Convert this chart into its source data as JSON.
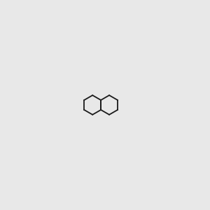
{
  "background_color": "#e8e8e8",
  "bond_color": "#1a1a1a",
  "N_color": "#0000cc",
  "O_color": "#cc0000",
  "NH_color": "#008080",
  "figsize": [
    3.0,
    3.0
  ],
  "dpi": 100
}
